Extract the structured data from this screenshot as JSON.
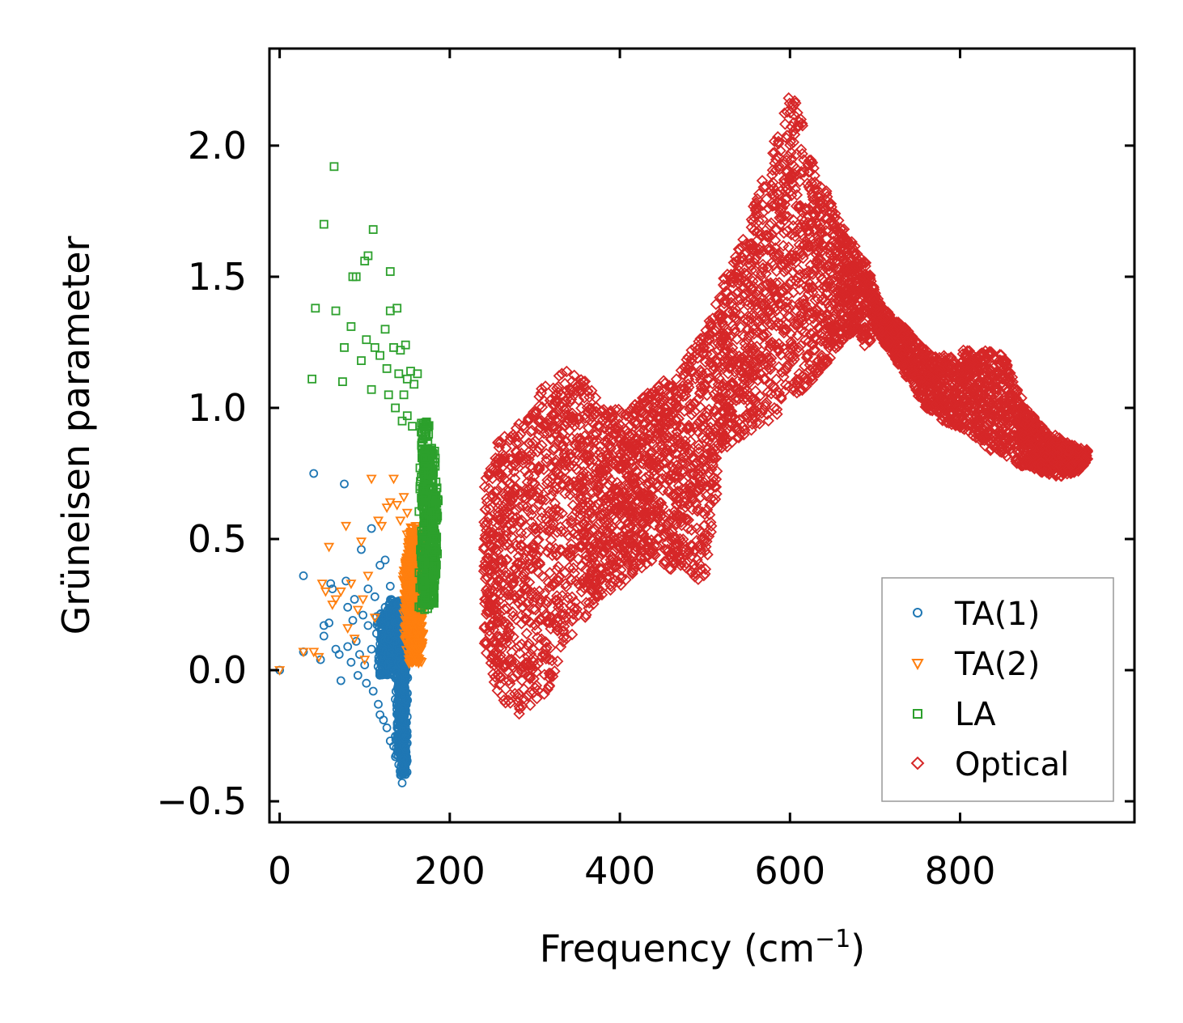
{
  "chart_data": {
    "type": "scatter",
    "title": "",
    "xlabel_base": "Frequency (cm",
    "xlabel_sup": "−1",
    "xlabel_end": ")",
    "ylabel": "Grüneisen parameter",
    "xlim": [
      -12,
      1005
    ],
    "ylim": [
      -0.58,
      2.37
    ],
    "xticks": [
      0,
      200,
      400,
      600,
      800
    ],
    "xtick_labels": [
      "0",
      "200",
      "400",
      "600",
      "800"
    ],
    "yticks": [
      -0.5,
      0.0,
      0.5,
      1.0,
      1.5,
      2.0
    ],
    "ytick_labels": [
      "−0.5",
      "0.0",
      "0.5",
      "1.0",
      "1.5",
      "2.0"
    ],
    "legend_position": "lower-right",
    "series": [
      {
        "name": "TA(1)",
        "marker": "circle",
        "color": "#1f77b4",
        "points": [
          [
            0,
            0.0
          ],
          [
            28,
            0.36
          ],
          [
            28,
            0.07
          ],
          [
            40,
            0.75
          ],
          [
            48,
            0.04
          ],
          [
            52,
            0.17
          ],
          [
            52,
            0.13
          ],
          [
            58,
            0.18
          ],
          [
            60,
            0.33
          ],
          [
            62,
            0.31
          ],
          [
            66,
            0.08
          ],
          [
            70,
            0.06
          ],
          [
            72,
            -0.04
          ],
          [
            76,
            0.71
          ],
          [
            78,
            0.34
          ],
          [
            80,
            0.24
          ],
          [
            80,
            0.09
          ],
          [
            84,
            0.03
          ],
          [
            86,
            0.19
          ],
          [
            88,
            0.27
          ],
          [
            90,
            0.11
          ],
          [
            92,
            -0.02
          ],
          [
            94,
            0.06
          ],
          [
            96,
            0.46
          ],
          [
            98,
            0.21
          ],
          [
            100,
            0.02
          ],
          [
            102,
            -0.05
          ],
          [
            104,
            0.31
          ],
          [
            104,
            0.17
          ],
          [
            108,
            0.54
          ],
          [
            108,
            0.08
          ],
          [
            110,
            -0.08
          ],
          [
            112,
            0.28
          ],
          [
            114,
            0.14
          ],
          [
            116,
            -0.13
          ],
          [
            118,
            0.4
          ],
          [
            118,
            -0.17
          ],
          [
            120,
            0.05
          ],
          [
            122,
            -0.19
          ],
          [
            124,
            0.42
          ],
          [
            124,
            0.24
          ],
          [
            126,
            -0.22
          ],
          [
            128,
            0.12
          ],
          [
            130,
            -0.27
          ],
          [
            130,
            0.32
          ],
          [
            134,
            -0.29
          ],
          [
            136,
            -0.33
          ],
          [
            138,
            0.16
          ],
          [
            140,
            -0.36
          ],
          [
            142,
            -0.4
          ],
          [
            144,
            -0.43
          ],
          [
            146,
            -0.38
          ],
          [
            148,
            -0.3
          ],
          [
            150,
            -0.25
          ]
        ],
        "dense_regions": [
          {
            "x_center": 126,
            "x_half_width": 14,
            "y_min": -0.02,
            "y_max": 0.22,
            "count": 220
          },
          {
            "x_center": 136,
            "x_half_width": 10,
            "y_min": 0.0,
            "y_max": 0.27,
            "count": 300
          },
          {
            "x_center": 142,
            "x_half_width": 7,
            "y_min": -0.33,
            "y_max": 0.26,
            "count": 340
          },
          {
            "x_center": 146,
            "x_half_width": 5,
            "y_min": -0.4,
            "y_max": 0.05,
            "count": 200
          }
        ]
      },
      {
        "name": "TA(2)",
        "marker": "triangle-down",
        "color": "#ff7f0e",
        "points": [
          [
            0,
            0.0
          ],
          [
            28,
            0.07
          ],
          [
            40,
            0.07
          ],
          [
            46,
            0.05
          ],
          [
            50,
            0.33
          ],
          [
            54,
            0.3
          ],
          [
            58,
            0.47
          ],
          [
            62,
            0.25
          ],
          [
            66,
            0.27
          ],
          [
            72,
            0.3
          ],
          [
            78,
            0.55
          ],
          [
            80,
            0.16
          ],
          [
            84,
            0.33
          ],
          [
            88,
            0.12
          ],
          [
            92,
            0.23
          ],
          [
            96,
            0.49
          ],
          [
            98,
            0.27
          ],
          [
            100,
            0.04
          ],
          [
            104,
            0.36
          ],
          [
            108,
            0.73
          ],
          [
            112,
            0.2
          ],
          [
            116,
            0.57
          ],
          [
            120,
            0.55
          ],
          [
            126,
            0.62
          ],
          [
            130,
            0.64
          ],
          [
            134,
            0.73
          ],
          [
            138,
            0.63
          ],
          [
            142,
            0.57
          ],
          [
            146,
            0.66
          ],
          [
            150,
            0.6
          ]
        ],
        "dense_regions": [
          {
            "x_center": 158,
            "x_half_width": 10,
            "y_min": 0.02,
            "y_max": 0.55,
            "count": 300
          },
          {
            "x_center": 152,
            "x_half_width": 8,
            "y_min": 0.1,
            "y_max": 0.45,
            "count": 200
          },
          {
            "x_center": 164,
            "x_half_width": 6,
            "y_min": 0.08,
            "y_max": 0.48,
            "count": 180
          }
        ]
      },
      {
        "name": "LA",
        "marker": "square",
        "color": "#2ca02c",
        "points": [
          [
            38,
            1.11
          ],
          [
            42,
            1.38
          ],
          [
            52,
            1.7
          ],
          [
            64,
            1.92
          ],
          [
            66,
            1.37
          ],
          [
            74,
            1.1
          ],
          [
            76,
            1.23
          ],
          [
            84,
            1.31
          ],
          [
            86,
            1.5
          ],
          [
            90,
            1.5
          ],
          [
            96,
            1.18
          ],
          [
            100,
            1.56
          ],
          [
            102,
            1.26
          ],
          [
            104,
            1.58
          ],
          [
            108,
            1.07
          ],
          [
            110,
            1.68
          ],
          [
            112,
            1.23
          ],
          [
            118,
            1.2
          ],
          [
            124,
            1.3
          ],
          [
            126,
            1.15
          ],
          [
            128,
            1.05
          ],
          [
            130,
            1.52
          ],
          [
            130,
            1.37
          ],
          [
            134,
            1.23
          ],
          [
            136,
            1.0
          ],
          [
            138,
            1.38
          ],
          [
            140,
            1.13
          ],
          [
            142,
            1.22
          ],
          [
            144,
            0.95
          ],
          [
            148,
            1.24
          ],
          [
            150,
            1.11
          ],
          [
            154,
            1.14
          ],
          [
            158,
            1.09
          ],
          [
            162,
            1.13
          ],
          [
            146,
            1.05
          ],
          [
            150,
            0.97
          ],
          [
            156,
            0.93
          ]
        ],
        "dense_regions": [
          {
            "x_center": 176,
            "x_half_width": 9,
            "y_min": 0.25,
            "y_max": 0.85,
            "count": 320
          },
          {
            "x_center": 170,
            "x_half_width": 7,
            "y_min": 0.22,
            "y_max": 0.95,
            "count": 160
          },
          {
            "x_center": 182,
            "x_half_width": 5,
            "y_min": 0.35,
            "y_max": 0.7,
            "count": 120
          }
        ]
      },
      {
        "name": "Optical",
        "marker": "diamond",
        "color": "#d62728",
        "outline_x": [
          240,
          250,
          260,
          270,
          280,
          290,
          300,
          310,
          320,
          330,
          340,
          350,
          360,
          370,
          380,
          390,
          400,
          410,
          420,
          430,
          440,
          450,
          460,
          470,
          480,
          490,
          500,
          510,
          520,
          530,
          540,
          550,
          560,
          570,
          580,
          590,
          600,
          610,
          620,
          630,
          640,
          650,
          660,
          670,
          680,
          690,
          700,
          710,
          720,
          730,
          740,
          750,
          760,
          770,
          780,
          790,
          800,
          810,
          820,
          830,
          840,
          850,
          860,
          870,
          880,
          890,
          900,
          910,
          920,
          930,
          940,
          950
        ],
        "outline_ymin": [
          0.1,
          -0.05,
          -0.1,
          -0.15,
          -0.18,
          -0.12,
          -0.15,
          -0.1,
          -0.05,
          0.05,
          0.1,
          0.15,
          0.2,
          0.25,
          0.28,
          0.3,
          0.32,
          0.35,
          0.37,
          0.4,
          0.42,
          0.4,
          0.38,
          0.4,
          0.38,
          0.35,
          0.33,
          0.55,
          0.85,
          0.85,
          0.88,
          0.88,
          0.9,
          0.92,
          0.95,
          1.0,
          1.05,
          1.05,
          1.08,
          1.1,
          1.15,
          1.2,
          1.25,
          1.28,
          1.3,
          1.22,
          1.3,
          1.25,
          1.2,
          1.15,
          1.1,
          1.05,
          1.0,
          0.98,
          0.95,
          0.93,
          0.92,
          0.9,
          0.88,
          0.85,
          0.83,
          0.82,
          0.8,
          0.78,
          0.77,
          0.76,
          0.75,
          0.74,
          0.74,
          0.75,
          0.76,
          0.8
        ],
        "outline_ymax": [
          0.7,
          0.85,
          0.9,
          0.88,
          0.95,
          0.97,
          1.05,
          1.1,
          1.12,
          1.15,
          1.14,
          1.15,
          1.1,
          1.05,
          1.0,
          1.0,
          1.0,
          1.0,
          1.02,
          1.05,
          1.08,
          1.1,
          1.12,
          1.15,
          1.2,
          1.25,
          1.32,
          1.4,
          1.48,
          1.55,
          1.62,
          1.7,
          1.8,
          1.9,
          2.0,
          2.1,
          2.2,
          2.15,
          2.0,
          1.9,
          1.85,
          1.78,
          1.7,
          1.65,
          1.6,
          1.55,
          1.45,
          1.38,
          1.35,
          1.32,
          1.3,
          1.25,
          1.22,
          1.2,
          1.2,
          1.2,
          1.22,
          1.22,
          1.2,
          1.22,
          1.22,
          1.2,
          1.15,
          1.05,
          1.0,
          0.95,
          0.92,
          0.9,
          0.88,
          0.86,
          0.85,
          0.84
        ],
        "count": 5200
      }
    ]
  },
  "colors": {
    "ta1": "#1f77b4",
    "ta2": "#ff7f0e",
    "la": "#2ca02c",
    "optical": "#d62728",
    "axis": "#000000",
    "legend_border": "#999999"
  }
}
